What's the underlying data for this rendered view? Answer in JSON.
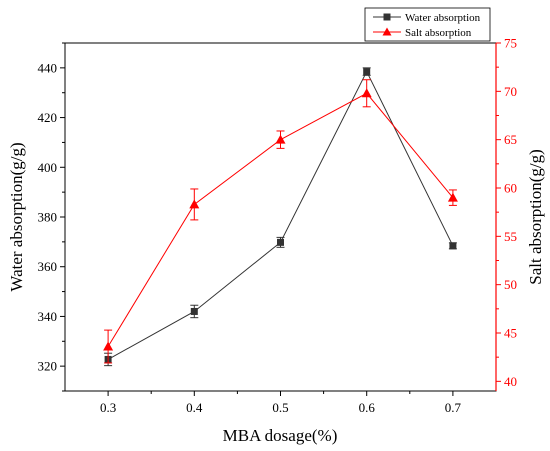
{
  "chart_data": {
    "type": "line",
    "x": [
      0.3,
      0.4,
      0.5,
      0.6,
      0.7
    ],
    "x_tick_labels": [
      "0.3",
      "0.4",
      "0.5",
      "0.6",
      "0.7"
    ],
    "xlabel": "MBA dosage(%)",
    "xlim": [
      0.25,
      0.75
    ],
    "left_axis": {
      "label": "Water absorption(g/g)",
      "ylim": [
        310,
        450
      ],
      "ticks": [
        320,
        340,
        360,
        380,
        400,
        420,
        440
      ],
      "color": "#000000"
    },
    "right_axis": {
      "label": "Salt absorption(g/g)",
      "ylim": [
        39,
        75
      ],
      "ticks": [
        40,
        45,
        50,
        55,
        60,
        65,
        70,
        75
      ],
      "color": "#ff0000"
    },
    "series": [
      {
        "name": "Water absorption",
        "axis": "left",
        "marker": "square",
        "color": "#333333",
        "values": [
          322.7,
          342.0,
          369.8,
          438.5,
          368.4
        ],
        "errors": [
          2.5,
          2.5,
          2.0,
          1.5,
          1.2
        ]
      },
      {
        "name": "Salt absorption",
        "axis": "right",
        "marker": "triangle",
        "color": "#ff0000",
        "values": [
          43.6,
          58.3,
          65.0,
          69.8,
          59.0
        ],
        "errors": [
          1.7,
          1.6,
          0.9,
          1.4,
          0.8
        ]
      }
    ],
    "grid": false,
    "legend_position": "top-right"
  }
}
